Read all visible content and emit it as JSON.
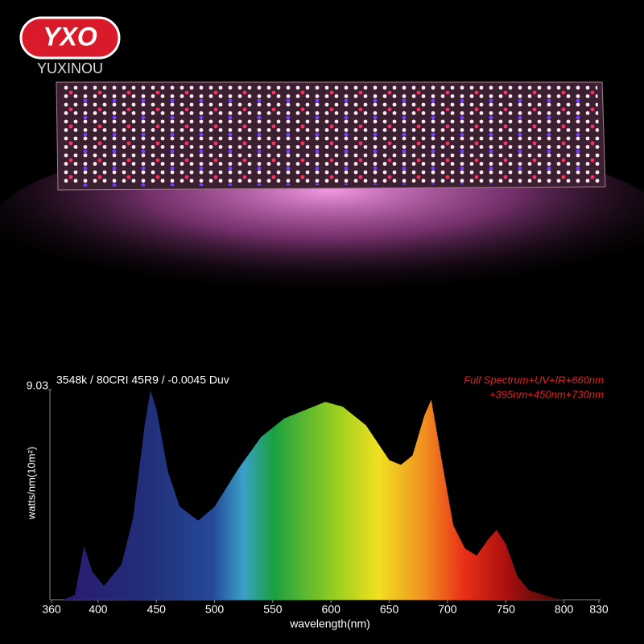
{
  "logo": {
    "mark": "YXO",
    "brand": "YUXINOU"
  },
  "chart_data": {
    "type": "area",
    "subtitle": "3548k / 80CRI 45R9 / -0.0045 Duv",
    "annotations": [
      "Full Spectrum+UV+IR+660nm",
      "+395nm+450nm+730nm"
    ],
    "x_label": "wavelength(nm)",
    "y_label": "watts/nm(10m²)",
    "x": [
      370,
      380,
      388,
      395,
      405,
      420,
      430,
      440,
      445,
      450,
      460,
      470,
      486,
      500,
      520,
      540,
      560,
      580,
      595,
      610,
      630,
      650,
      660,
      670,
      680,
      686,
      695,
      705,
      715,
      725,
      735,
      742,
      750,
      760,
      770,
      790,
      800
    ],
    "values": [
      0,
      0.2,
      2.3,
      1.2,
      0.6,
      1.5,
      3.5,
      7.5,
      9.0,
      8.2,
      5.5,
      4.0,
      3.4,
      4.0,
      5.6,
      7.0,
      7.8,
      8.2,
      8.5,
      8.3,
      7.5,
      6.0,
      5.8,
      6.2,
      7.9,
      8.6,
      6.0,
      3.2,
      2.2,
      1.9,
      2.6,
      3.0,
      2.4,
      1.0,
      0.4,
      0.1,
      0
    ],
    "xlim": [
      360,
      830
    ],
    "xticks": [
      360,
      400,
      450,
      500,
      550,
      600,
      650,
      700,
      750,
      800,
      830
    ],
    "ylim": [
      0,
      9.03
    ],
    "yticks": [
      9.03
    ]
  }
}
